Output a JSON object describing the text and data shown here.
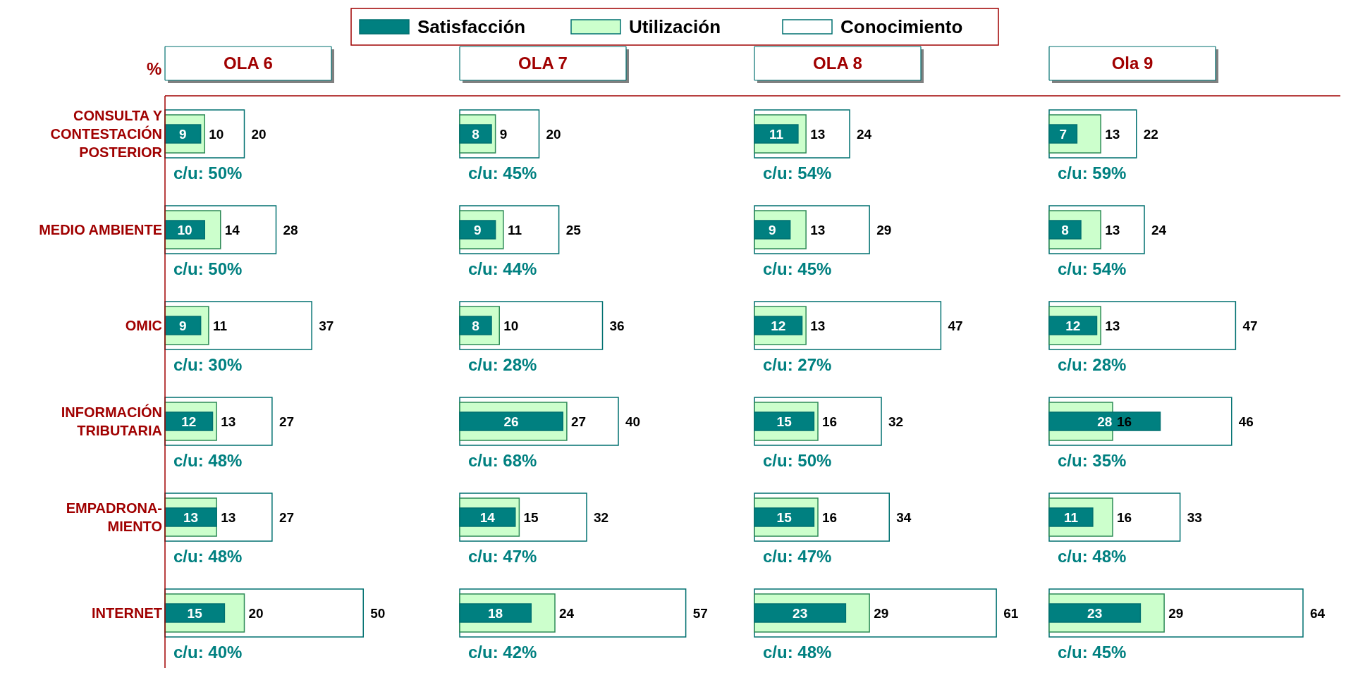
{
  "chart_data": [
    {
      "type": "bar",
      "orientation": "horizontal",
      "title": "OLA 6",
      "ylabel": "%",
      "legend": "top",
      "tick_labels": "y",
      "data_labels": true,
      "categories": [
        "CONSULTA Y CONTESTACIÓN POSTERIOR",
        "MEDIO AMBIENTE",
        "OMIC",
        "INFORMACIÓN TRIBUTARIA",
        "EMPADRONA- MIENTO",
        "INTERNET"
      ],
      "series": [
        {
          "name": "Satisfacción",
          "color": "#008080",
          "values": [
            9,
            10,
            9,
            12,
            13,
            15
          ]
        },
        {
          "name": "Utilización",
          "color": "#ccffcc",
          "values": [
            10,
            14,
            11,
            13,
            13,
            20
          ]
        },
        {
          "name": "Conocimiento",
          "color": "#ffffff",
          "values": [
            20,
            28,
            37,
            27,
            27,
            50
          ]
        }
      ],
      "annotations": [
        "c/u: 50%",
        "c/u: 50%",
        "c/u: 30%",
        "c/u: 48%",
        "c/u: 48%",
        "c/u: 40%"
      ]
    },
    {
      "type": "bar",
      "orientation": "horizontal",
      "title": "OLA 7",
      "tick_labels": false,
      "data_labels": true,
      "categories": [
        null,
        null,
        null,
        null,
        null,
        null
      ],
      "series": [
        {
          "color": "#008080",
          "values": [
            8,
            9,
            8,
            26,
            14,
            18
          ]
        },
        {
          "color": "#ccffcc",
          "values": [
            9,
            11,
            10,
            27,
            15,
            24
          ]
        },
        {
          "color": "#ffffff",
          "values": [
            20,
            25,
            36,
            40,
            32,
            57
          ]
        }
      ],
      "annotations": [
        "c/u: 45%",
        "c/u: 44%",
        "c/u: 28%",
        "c/u: 68%",
        "c/u: 47%",
        "c/u: 42%"
      ]
    },
    {
      "type": "bar",
      "orientation": "horizontal",
      "title": "OLA 8",
      "tick_labels": false,
      "data_labels": true,
      "categories": [
        null,
        null,
        null,
        null,
        null,
        null
      ],
      "series": [
        {
          "color": "#008080",
          "values": [
            11,
            9,
            12,
            15,
            15,
            23
          ]
        },
        {
          "color": "#ccffcc",
          "values": [
            13,
            13,
            13,
            16,
            16,
            29
          ]
        },
        {
          "color": "#ffffff",
          "values": [
            24,
            29,
            47,
            32,
            34,
            61
          ]
        }
      ],
      "annotations": [
        "c/u: 54%",
        "c/u: 45%",
        "c/u: 27%",
        "c/u: 50%",
        "c/u: 47%",
        "c/u: 48%"
      ]
    },
    {
      "type": "bar",
      "orientation": "horizontal",
      "title": "Ola 9",
      "tick_labels": false,
      "data_labels": true,
      "categories": [
        null,
        null,
        null,
        null,
        null,
        null
      ],
      "series": [
        {
          "color": "#008080",
          "values": [
            7,
            8,
            12,
            28,
            11,
            23
          ]
        },
        {
          "color": "#ccffcc",
          "values": [
            13,
            13,
            13,
            16,
            16,
            29
          ]
        },
        {
          "color": "#ffffff",
          "values": [
            22,
            24,
            47,
            46,
            33,
            64
          ]
        }
      ],
      "annotations": [
        "c/u: 59%",
        "c/u: 54%",
        "c/u: 28%",
        "c/u: 35%",
        "c/u: 48%",
        "c/u: 45%"
      ]
    }
  ]
}
